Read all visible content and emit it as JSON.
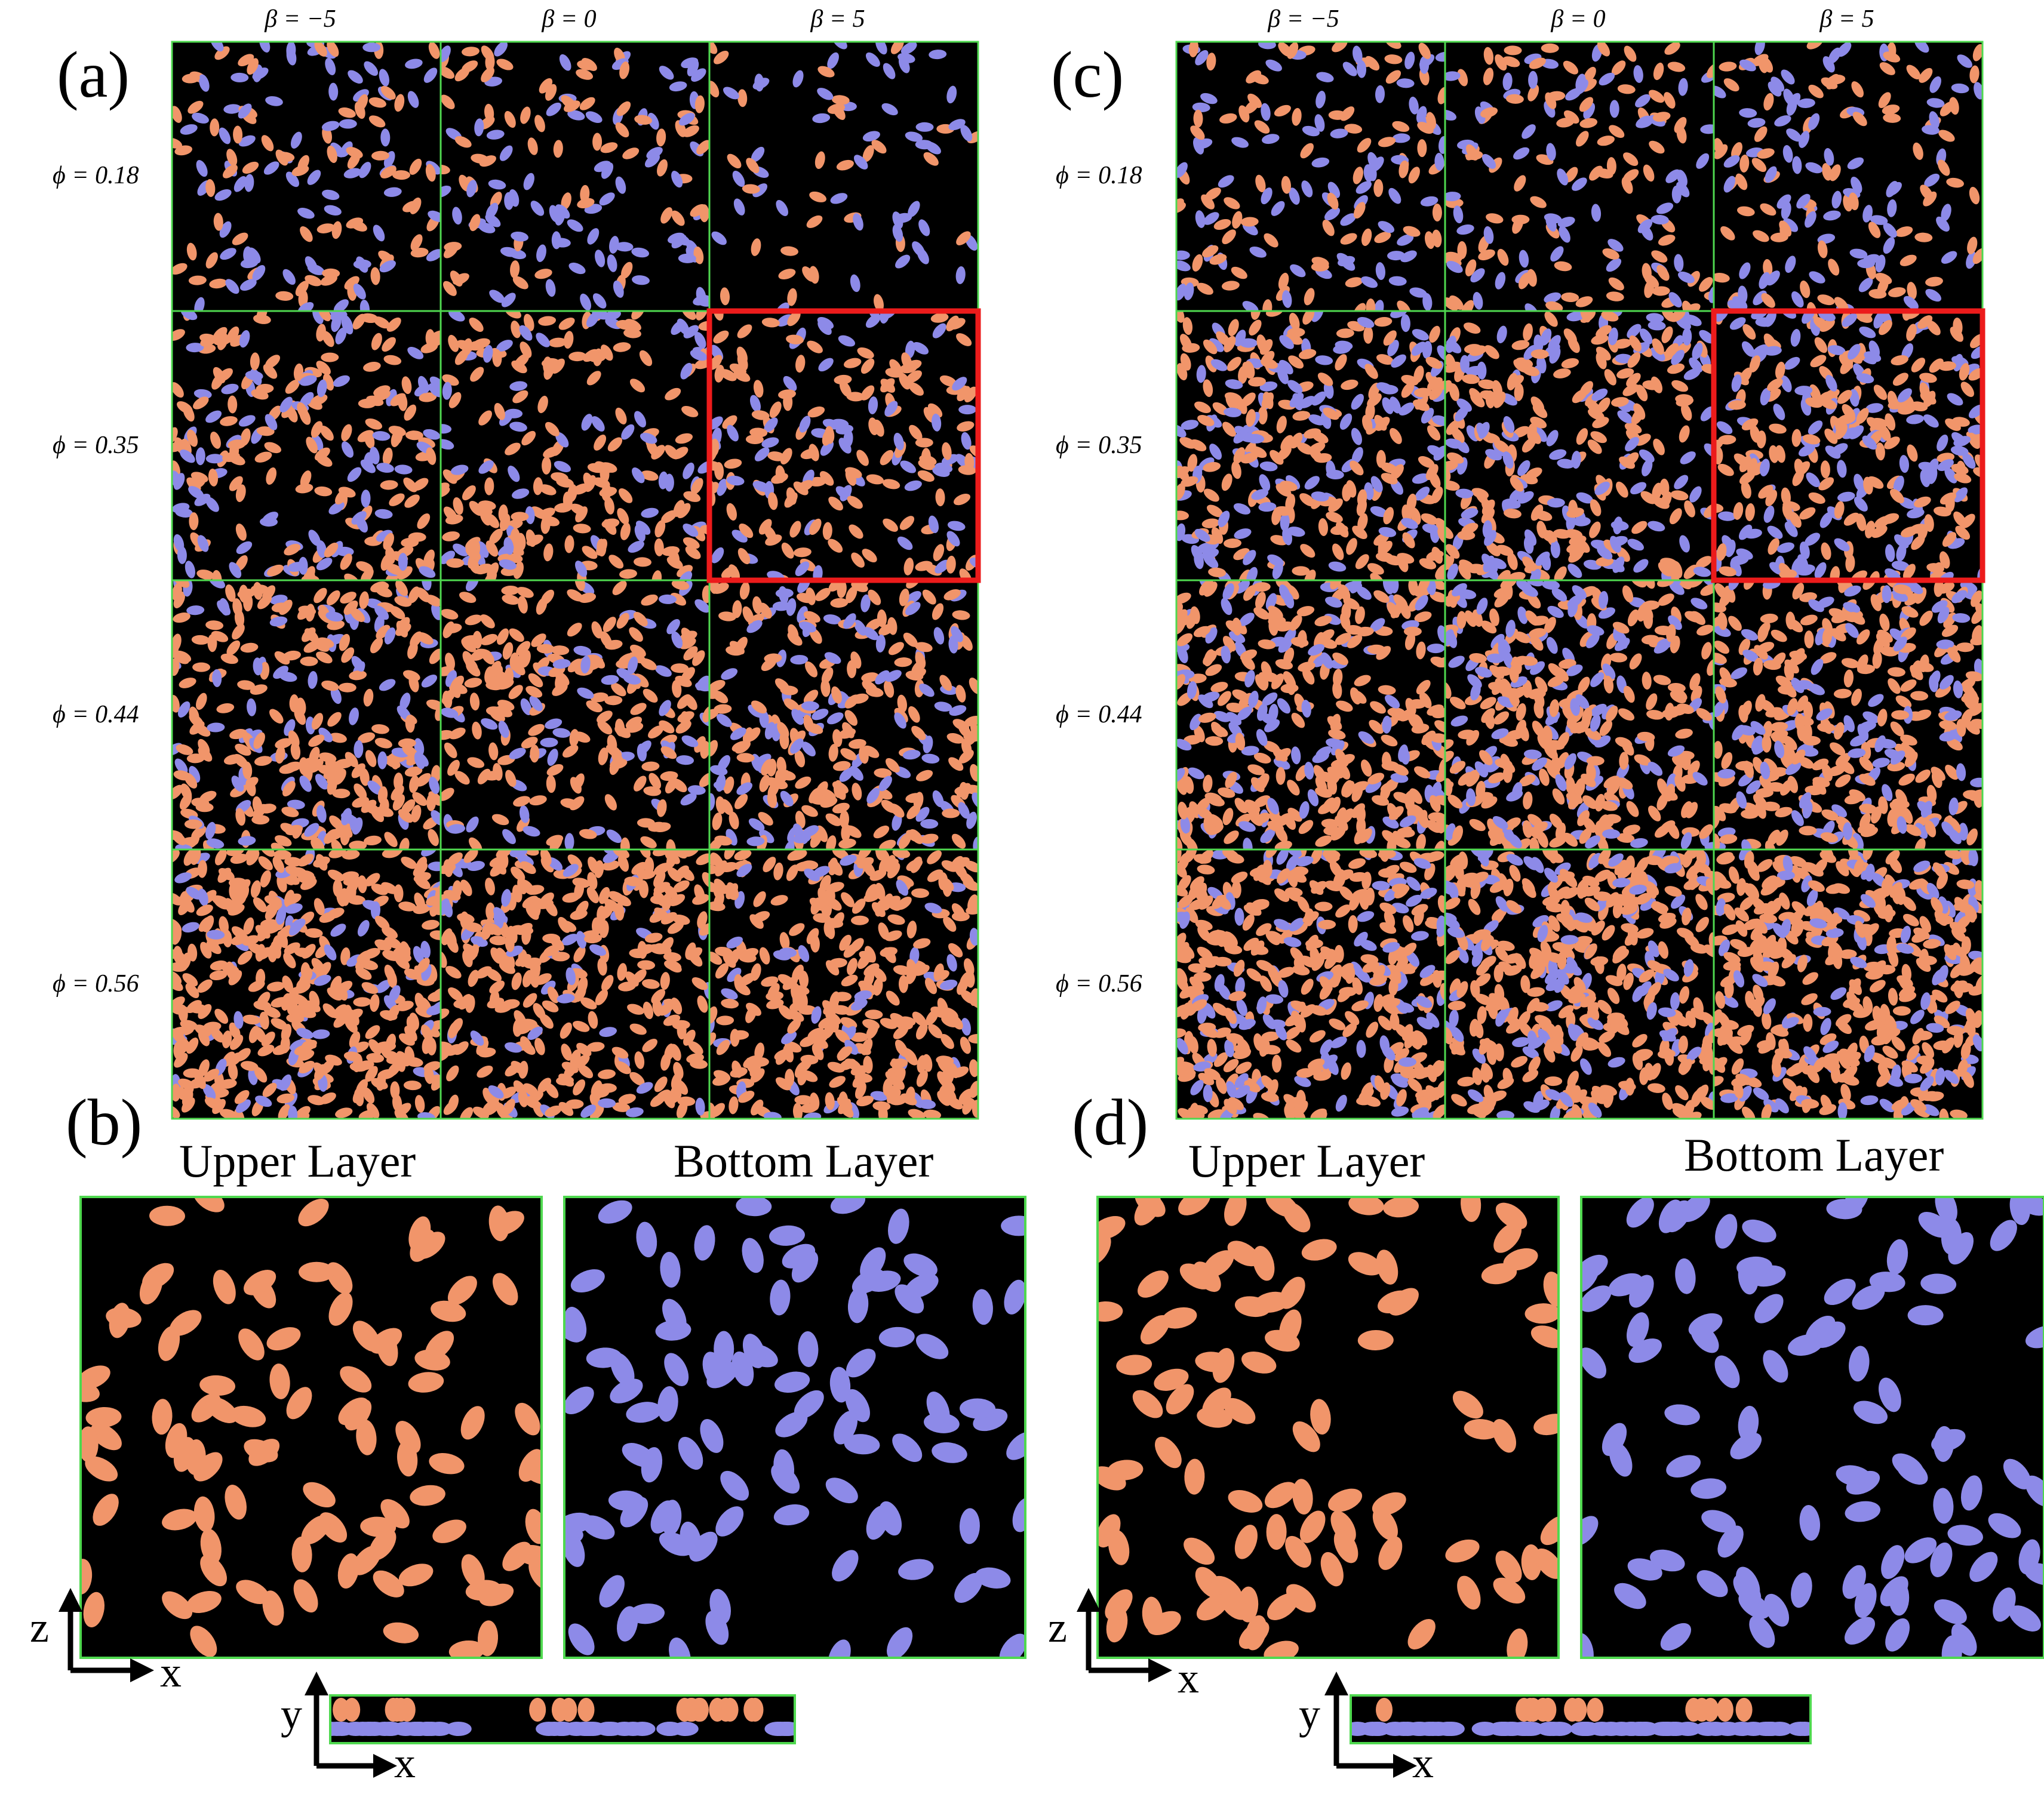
{
  "figure": {
    "colors": {
      "upper": "#f1956a",
      "bottom": "#8d8ae8",
      "background": "#000000",
      "grid": "#4fd84f",
      "highlight": "#ec1b1b"
    },
    "panel_labels": [
      "(a)",
      "(b)",
      "(c)",
      "(d)"
    ],
    "column_labels": [
      "β = −5",
      "β = 0",
      "β = 5"
    ],
    "row_labels": [
      "ϕ = 0.18",
      "ϕ = 0.35",
      "ϕ = 0.44",
      "ϕ = 0.56"
    ],
    "phi_values": [
      0.18,
      0.35,
      0.44,
      0.56
    ],
    "beta_values": [
      -5,
      0,
      5
    ],
    "highlighted_cell": {
      "row": 1,
      "col": 2
    },
    "layer_titles": {
      "upper": "Upper Layer",
      "bottom": "Bottom Layer"
    },
    "axes": {
      "z": "z",
      "x": "x",
      "y": "y"
    }
  }
}
